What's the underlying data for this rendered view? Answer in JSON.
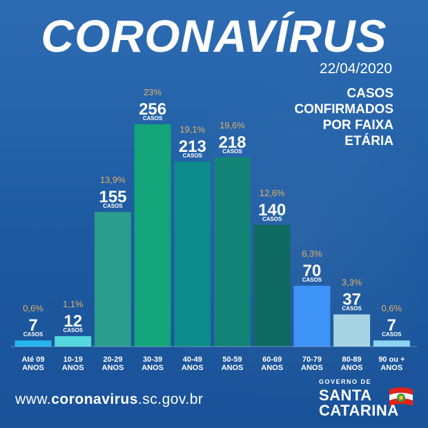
{
  "header": {
    "title": "CORONAVÍRUS",
    "date": "22/04/2020",
    "subtitle_lines": [
      "CASOS",
      "CONFIRMADOS",
      "POR FAIXA",
      "ETÁRIA"
    ]
  },
  "footer": {
    "website_prefix": "www.",
    "website_bold": "coronavirus",
    "website_suffix": ".sc.gov.br",
    "logo_small": "GOVERNO DE",
    "logo_line1": "SANTA",
    "logo_line2": "CATARINA"
  },
  "chart_data": {
    "type": "bar",
    "title": "CASOS CONFIRMADOS POR FAIXA ETÁRIA",
    "unit_label": "CASOS",
    "categories": [
      [
        "Até 09",
        "ANOS"
      ],
      [
        "10-19",
        "ANOS"
      ],
      [
        "20-29",
        "ANOS"
      ],
      [
        "30-39",
        "ANOS"
      ],
      [
        "40-49",
        "ANOS"
      ],
      [
        "50-59",
        "ANOS"
      ],
      [
        "60-69",
        "ANOS"
      ],
      [
        "70-79",
        "ANOS"
      ],
      [
        "80-89",
        "ANOS"
      ],
      [
        "90 ou +",
        "ANOS"
      ]
    ],
    "values": [
      7,
      12,
      155,
      256,
      213,
      218,
      140,
      70,
      37,
      7
    ],
    "percentages": [
      "0,6%",
      "1,1%",
      "13,9%",
      "23%",
      "19,1%",
      "19,6%",
      "12,6%",
      "6,3%",
      "3,3%",
      "0,6%"
    ],
    "colors": [
      "#27b5ee",
      "#54d6de",
      "#2a9c8c",
      "#13a47a",
      "#0b8b8b",
      "#138277",
      "#0f6b62",
      "#3d93f6",
      "#a7d3e4",
      "#8ad4f4"
    ],
    "percent_color": "#e0b267",
    "ylim": [
      0,
      256
    ]
  }
}
